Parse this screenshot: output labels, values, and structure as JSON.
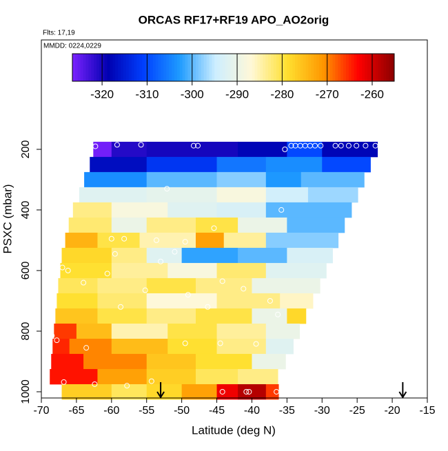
{
  "chart_data": {
    "type": "heatmap",
    "title": "ORCAS RF17+RF19 APO_AO2orig",
    "subtitle": "Flts: 17,19",
    "annotation": "MMDD: 0224,0229",
    "xlabel": "Latitude (deg N)",
    "ylabel": "PSXC (mbar)",
    "xlim": [
      -70,
      -15
    ],
    "xticks": [
      -70,
      -65,
      -60,
      -55,
      -50,
      -45,
      -40,
      -35,
      -30,
      -25,
      -20,
      -15
    ],
    "ylim": [
      1020.5,
      -161
    ],
    "yticks": [
      200,
      400,
      600,
      800,
      1000
    ],
    "zlim": [
      -326.6,
      -255.1
    ],
    "zticks": [
      -320,
      -310,
      -300,
      -290,
      -280,
      -270,
      -260
    ],
    "colors": [
      "#7b22ff",
      "#0000b0",
      "#0040ff",
      "#1e9bff",
      "#cdeeff",
      "#fff8d8",
      "#ffe030",
      "#ff9800",
      "#ff0000",
      "#8b0000"
    ],
    "band_height": 50,
    "bands": [
      {
        "pressure": 200,
        "lat_edges": [
          -62.6,
          -60,
          -55,
          -48,
          -42,
          -35,
          -30,
          -22.1
        ],
        "values": [
          -326,
          -321,
          -320,
          -320,
          -318,
          -310,
          -318
        ]
      },
      {
        "pressure": 250,
        "lat_edges": [
          -63.1,
          -55,
          -45,
          -38,
          -30,
          -23.1
        ],
        "values": [
          -317,
          -312,
          -306,
          -304,
          -310
        ]
      },
      {
        "pressure": 300,
        "lat_edges": [
          -63.9,
          -55,
          -45,
          -38,
          -33,
          -24.0
        ],
        "values": [
          -304,
          -300,
          -298,
          -303,
          -300
        ]
      },
      {
        "pressure": 350,
        "lat_edges": [
          -64.6,
          -55,
          -45,
          -38,
          -32,
          -24.9
        ],
        "values": [
          -292,
          -291,
          -288,
          -294,
          -297
        ]
      },
      {
        "pressure": 400,
        "lat_edges": [
          -65.5,
          -60,
          -52,
          -45,
          -38,
          -25.8
        ],
        "values": [
          -283,
          -288,
          -292,
          -293,
          -300
        ]
      },
      {
        "pressure": 450,
        "lat_edges": [
          -66.1,
          -60,
          -55,
          -48,
          -42,
          -35,
          -26.8
        ],
        "values": [
          -282,
          -290,
          -283,
          -280,
          -290,
          -300
        ]
      },
      {
        "pressure": 500,
        "lat_edges": [
          -66.6,
          -62,
          -56,
          -48,
          -44,
          -38,
          -27.7
        ],
        "values": [
          -274,
          -280,
          -285,
          -272,
          -284,
          -298
        ]
      },
      {
        "pressure": 550,
        "lat_edges": [
          -67.1,
          -60,
          -55,
          -50,
          -42,
          -35,
          -28.5
        ],
        "values": [
          -278,
          -283,
          -292,
          -302,
          -300,
          -293
        ]
      },
      {
        "pressure": 600,
        "lat_edges": [
          -67.3,
          -60,
          -52,
          -45,
          -38,
          -29.4
        ],
        "values": [
          -279,
          -284,
          -288,
          -282,
          -292
        ]
      },
      {
        "pressure": 650,
        "lat_edges": [
          -67.6,
          -62,
          -55,
          -48,
          -40,
          -30.3
        ],
        "values": [
          -281,
          -283,
          -280,
          -283,
          -290
        ]
      },
      {
        "pressure": 700,
        "lat_edges": [
          -67.8,
          -62,
          -55,
          -45,
          -36,
          -31.3
        ],
        "values": [
          -279,
          -282,
          -287,
          -283,
          -286
        ]
      },
      {
        "pressure": 750,
        "lat_edges": [
          -68.0,
          -62,
          -55,
          -48,
          -40,
          -35,
          -32.3
        ],
        "values": [
          -276,
          -280,
          -283,
          -280,
          -290,
          -278
        ]
      },
      {
        "pressure": 800,
        "lat_edges": [
          -68.2,
          -65,
          -60,
          -52,
          -45,
          -38,
          -33.2
        ],
        "values": [
          -266,
          -275,
          -285,
          -280,
          -284,
          -290
        ]
      },
      {
        "pressure": 850,
        "lat_edges": [
          -68.4,
          -66,
          -60,
          -52,
          -45,
          -38,
          -34.1
        ],
        "values": [
          -265,
          -270,
          -275,
          -279,
          -283,
          -292
        ]
      },
      {
        "pressure": 900,
        "lat_edges": [
          -68.6,
          -64,
          -55,
          -48,
          -40,
          -35.2
        ],
        "values": [
          -264,
          -270,
          -276,
          -279,
          -290
        ]
      },
      {
        "pressure": 950,
        "lat_edges": [
          -68.8,
          -62,
          -55,
          -48,
          -42,
          -36.3
        ],
        "values": [
          -264,
          -272,
          -277,
          -281,
          -283
        ]
      },
      {
        "pressure": 1000,
        "lat_edges": [
          -67.1,
          -60,
          -55,
          -50,
          -45,
          -42,
          -38,
          -36.2
        ],
        "values": [
          -277,
          -281,
          -278,
          -272,
          -262,
          -258,
          -266
        ]
      }
    ],
    "samples": {
      "lat": [
        -62.3,
        -59.2,
        -55.8,
        -48.3,
        -47.7,
        -35.3,
        -34.4,
        -33.8,
        -33.1,
        -32.4,
        -31.7,
        -31.0,
        -30.2,
        -28.1,
        -27.3,
        -26.2,
        -25.1,
        -23.8,
        -22.4,
        -52.1,
        -35.8,
        -60.0,
        -58.2,
        -53.6,
        -45.4,
        -49.5,
        -51.0,
        -59.5,
        -67.0,
        -66.2,
        -64.0,
        -60.6,
        -55.2,
        -49.1,
        -53.0,
        -58.7,
        -46.3,
        -41.2,
        -44.2,
        -36.3,
        -37.4,
        -68.5,
        -67.8,
        -63.6,
        -49.5,
        -44.5,
        -39.4,
        -66.8,
        -62.4,
        -57.8,
        -54.3,
        -44.2,
        -40.8,
        -40.4,
        -36.5
      ],
      "pressure": [
        190,
        185,
        185,
        188,
        188,
        200,
        188,
        188,
        188,
        188,
        188,
        188,
        188,
        188,
        188,
        188,
        188,
        188,
        188,
        330,
        400,
        495,
        495,
        500,
        460,
        505,
        538,
        545,
        590,
        600,
        640,
        610,
        665,
        680,
        570,
        720,
        720,
        660,
        635,
        745,
        700,
        815,
        830,
        855,
        840,
        840,
        842,
        968,
        975,
        980,
        965,
        1000,
        1000,
        1000,
        1000
      ]
    },
    "arrows": [
      -53,
      -18.5
    ]
  }
}
